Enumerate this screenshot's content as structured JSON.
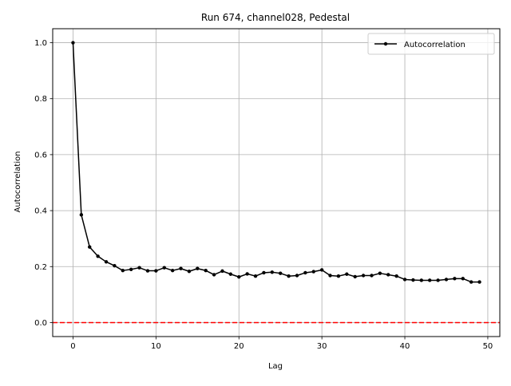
{
  "chart_data": {
    "type": "line",
    "title": "Run 674, channel028, Pedestal",
    "xlabel": "Lag",
    "ylabel": "Autocorrelation",
    "xlim": [
      -2.45,
      51.45
    ],
    "ylim": [
      -0.05,
      1.05
    ],
    "x_ticks": [
      0,
      10,
      20,
      30,
      40,
      50
    ],
    "y_ticks": [
      0.0,
      0.2,
      0.4,
      0.6,
      0.8,
      1.0
    ],
    "x_tick_labels": [
      "0",
      "10",
      "20",
      "30",
      "40",
      "50"
    ],
    "y_tick_labels": [
      "0.0",
      "0.2",
      "0.4",
      "0.6",
      "0.8",
      "1.0"
    ],
    "grid": true,
    "legend_position": "top-right",
    "series": [
      {
        "name": "Autocorrelation",
        "color": "#000000",
        "marker": "circle",
        "x": [
          0,
          1,
          2,
          3,
          4,
          5,
          6,
          7,
          8,
          9,
          10,
          11,
          12,
          13,
          14,
          15,
          16,
          17,
          18,
          19,
          20,
          21,
          22,
          23,
          24,
          25,
          26,
          27,
          28,
          29,
          30,
          31,
          32,
          33,
          34,
          35,
          36,
          37,
          38,
          39,
          40,
          41,
          42,
          43,
          44,
          45,
          46,
          47,
          48,
          49
        ],
        "values": [
          1.0,
          0.385,
          0.27,
          0.237,
          0.217,
          0.203,
          0.186,
          0.19,
          0.196,
          0.185,
          0.185,
          0.196,
          0.186,
          0.193,
          0.183,
          0.193,
          0.186,
          0.171,
          0.184,
          0.173,
          0.163,
          0.174,
          0.166,
          0.178,
          0.18,
          0.176,
          0.166,
          0.168,
          0.178,
          0.182,
          0.188,
          0.168,
          0.166,
          0.173,
          0.164,
          0.168,
          0.168,
          0.176,
          0.171,
          0.166,
          0.154,
          0.152,
          0.151,
          0.151,
          0.151,
          0.154,
          0.157,
          0.157,
          0.145,
          0.145
        ]
      }
    ],
    "reference_lines": [
      {
        "axis": "y",
        "value": 0.0,
        "color": "#ff0000",
        "style": "dashed"
      }
    ]
  }
}
